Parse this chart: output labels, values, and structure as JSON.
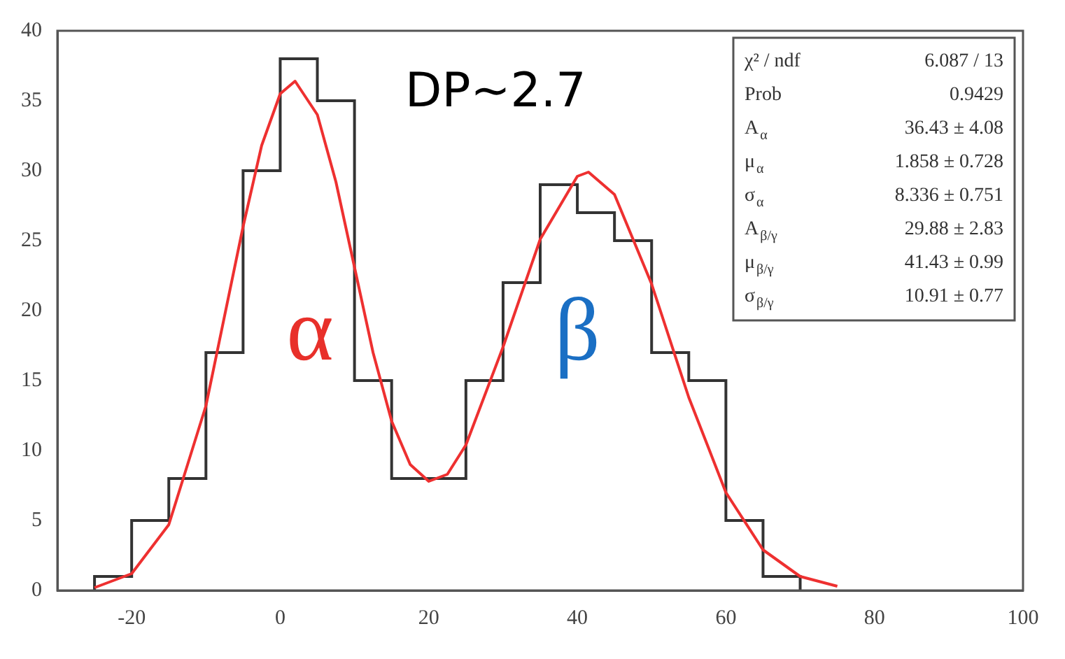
{
  "chart_data": {
    "type": "histogram",
    "series": [
      {
        "color": "#333333",
        "bins": [
          -25,
          -20,
          -15,
          -10,
          -5,
          0,
          5,
          10,
          15,
          20,
          25,
          30,
          35,
          40,
          45,
          50,
          55,
          60,
          65,
          70
        ],
        "values": [
          1,
          5,
          8,
          17,
          30,
          38,
          35,
          15,
          8,
          8,
          15,
          22,
          29,
          27,
          25,
          17,
          15,
          5,
          1
        ]
      },
      {
        "type": "line",
        "color": "#ee3030",
        "x": [
          -25,
          -20,
          -15,
          -10,
          -5,
          -2.5,
          0,
          2,
          5,
          7.5,
          10,
          12.5,
          15,
          17.5,
          20,
          22.5,
          25,
          30,
          35,
          40,
          41.5,
          45,
          50,
          55,
          60,
          65,
          70,
          75
        ],
        "values": [
          0.2,
          1.2,
          4.7,
          13.2,
          26,
          31.8,
          35.5,
          36.4,
          34,
          29.2,
          23.1,
          17,
          12.1,
          9,
          7.8,
          8.3,
          10.4,
          17.4,
          25.1,
          29.6,
          29.9,
          28.3,
          21.9,
          13.8,
          7,
          2.9,
          1,
          0.3
        ]
      }
    ],
    "xlim": [
      -30,
      100
    ],
    "xticks": [
      {
        "value": -30,
        "label": null
      },
      -20,
      0,
      20,
      40,
      60,
      80,
      100
    ],
    "ylim": [
      0,
      40
    ],
    "yticks": [
      0,
      5,
      10,
      15,
      20,
      25,
      30,
      35,
      40
    ],
    "grid": false,
    "legend": false,
    "annotations": [
      "α",
      "β",
      "DP~2.7",
      "χ² / ndf",
      "6.087 / 13",
      "Prob",
      "0.9429",
      "A$_{α}$",
      "36.43 ± 4.08",
      "μ$_{α}$",
      "1.858 ± 0.728",
      "σ$_{α}$",
      "8.336 ± 0.751",
      "A$_{β/γ}$",
      "29.88 ± 2.83",
      "μ$_{β/γ}$",
      "41.43 ± 0.99",
      "σ$_{β/γ}$",
      "10.91 ± 0.77"
    ]
  }
}
